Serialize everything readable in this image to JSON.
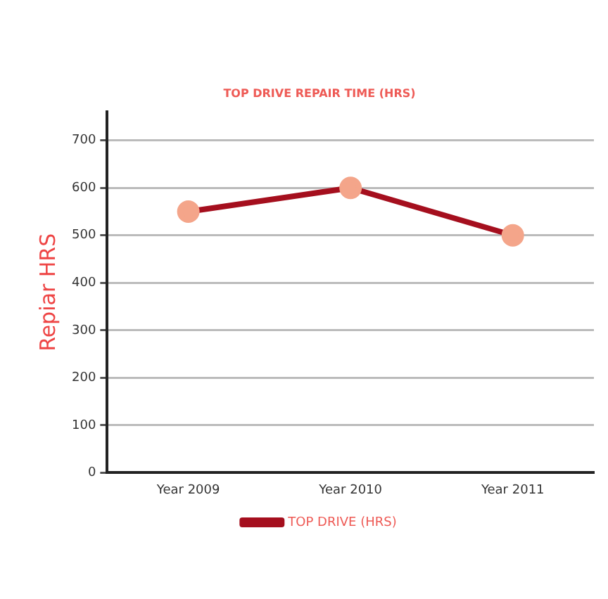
{
  "chart_data": {
    "type": "line",
    "title": "TOP DRIVE REPAIR TIME (HRS)",
    "ylabel": "Repiar HRS",
    "categories": [
      "Year 2009",
      "Year 2010",
      "Year 2011"
    ],
    "series": [
      {
        "name": "TOP DRIVE (HRS)",
        "color": "#a50f1e",
        "values": [
          550,
          600,
          500
        ]
      }
    ],
    "ylim": [
      0,
      760
    ],
    "yticks": [
      0,
      100,
      200,
      300,
      400,
      500,
      600,
      700
    ],
    "grid": "y",
    "legend": "bottom",
    "marker": "circle",
    "line_style": "solid"
  }
}
